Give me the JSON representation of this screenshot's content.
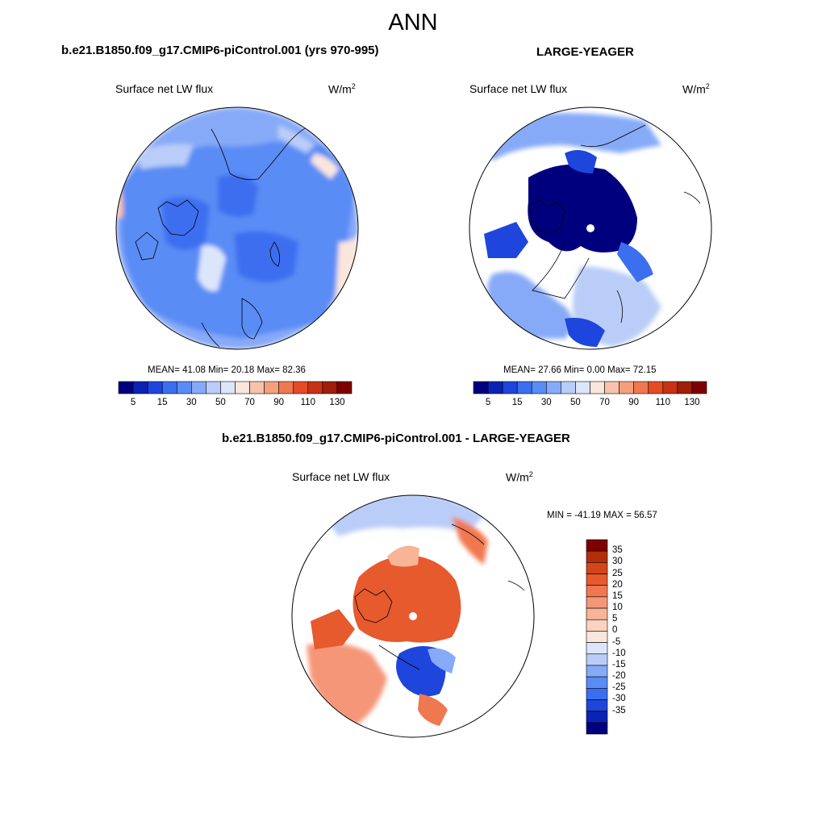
{
  "figure": {
    "title": "ANN",
    "left_panel_title": "b.e21.B1850.f09_g17.CMIP6-piControl.001 (yrs 970-995)",
    "right_panel_title": "LARGE-YEAGER",
    "bottom_panel_title": "b.e21.B1850.f09_g17.CMIP6-piControl.001 - LARGE-YEAGER"
  },
  "colors": {
    "background": "#ffffff",
    "land": "#ffffff",
    "coastline": "#000000",
    "abs_scale": [
      "#00007f",
      "#0a23b4",
      "#1e46dc",
      "#3c6ef0",
      "#5a8cf5",
      "#87aaf8",
      "#b9cdf8",
      "#dce6fa",
      "#fae6dc",
      "#f8c3aa",
      "#f5a07d",
      "#f07850",
      "#e64b28",
      "#c83214",
      "#a01e0a",
      "#7f0000"
    ],
    "diff_scale": [
      "#00007f",
      "#0a23b4",
      "#1e46dc",
      "#3c6ef0",
      "#5a8cf5",
      "#87aaf8",
      "#b9cdf8",
      "#dce6fa",
      "#fae6dc",
      "#fad2be",
      "#f8b496",
      "#f59678",
      "#f07850",
      "#e65a2d",
      "#d24619",
      "#b42d0a",
      "#7f0000"
    ]
  },
  "chart_data": [
    {
      "type": "heatmap",
      "projection": "north polar stereographic",
      "title": "b.e21.B1850.f09_g17.CMIP6-piControl.001 (yrs 970-995)",
      "variable": "Surface net LW flux",
      "units": "W/m",
      "units_exponent": "2",
      "stats": {
        "mean": 41.08,
        "min": 20.18,
        "max": 82.36
      },
      "stats_text": "MEAN=  41.08  Min=  20.18  Max=  82.36",
      "colorbar_ticks": [
        "5",
        "15",
        "30",
        "50",
        "70",
        "90",
        "110",
        "130"
      ]
    },
    {
      "type": "heatmap",
      "projection": "north polar stereographic",
      "title": "LARGE-YEAGER",
      "variable": "Surface net LW flux",
      "units": "W/m",
      "units_exponent": "2",
      "stats": {
        "mean": 27.66,
        "min": 0.0,
        "max": 72.15
      },
      "stats_text": "MEAN=  27.66  Min=    0.00  Max=  72.15",
      "colorbar_ticks": [
        "5",
        "15",
        "30",
        "50",
        "70",
        "90",
        "110",
        "130"
      ]
    },
    {
      "type": "heatmap",
      "projection": "north polar stereographic",
      "title": "b.e21.B1850.f09_g17.CMIP6-piControl.001 - LARGE-YEAGER",
      "variable": "Surface net LW flux",
      "units": "W/m",
      "units_exponent": "2",
      "stats": {
        "min": -41.19,
        "max": 56.57
      },
      "stats_text": "MIN = -41.19 MAX =  56.57",
      "colorbar_ticks": [
        "35",
        "30",
        "25",
        "20",
        "15",
        "10",
        "5",
        "0",
        "-5",
        "-10",
        "-15",
        "-20",
        "-25",
        "-30",
        "-35"
      ]
    }
  ]
}
